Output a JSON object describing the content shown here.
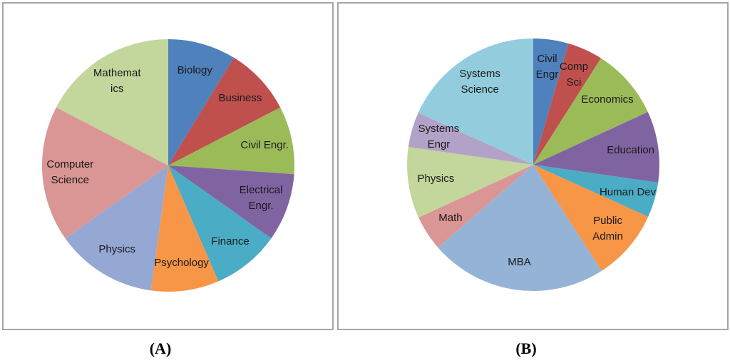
{
  "chart_data": [
    {
      "type": "pie",
      "caption": "(A)",
      "categories": [
        "Biology",
        "Business",
        "Civil Engr.",
        "Electrical\nEngr.",
        "Finance",
        "Psychology",
        "Physics",
        "Computer\nScience",
        "Mathemat\nics"
      ],
      "values": [
        8.7,
        8.7,
        8.7,
        8.7,
        8.7,
        8.7,
        13,
        17.4,
        17.4
      ],
      "colors": [
        "#4f81bd",
        "#c0504d",
        "#9bbb59",
        "#8064a2",
        "#4bacc6",
        "#f79646",
        "#95a8d3",
        "#d99694",
        "#c3d69b"
      ]
    },
    {
      "type": "pie",
      "caption": "(B)",
      "categories": [
        "Civil\nEngr",
        "Comp\nSci",
        "Economics",
        "Education",
        "Human Dev",
        "Public\nAdmin",
        "MBA",
        "Math",
        "Physics",
        "Systems\nEngr",
        "Systems\nScience"
      ],
      "values": [
        4.5,
        4.5,
        9.1,
        9.1,
        4.5,
        9.1,
        22.7,
        4.5,
        9.1,
        4.5,
        18.2
      ],
      "colors": [
        "#4f81bd",
        "#c0504d",
        "#9bbb59",
        "#8064a2",
        "#4bacc6",
        "#f79646",
        "#95b3d7",
        "#d99694",
        "#c3d69b",
        "#b3a2c7",
        "#93cddd"
      ]
    }
  ]
}
